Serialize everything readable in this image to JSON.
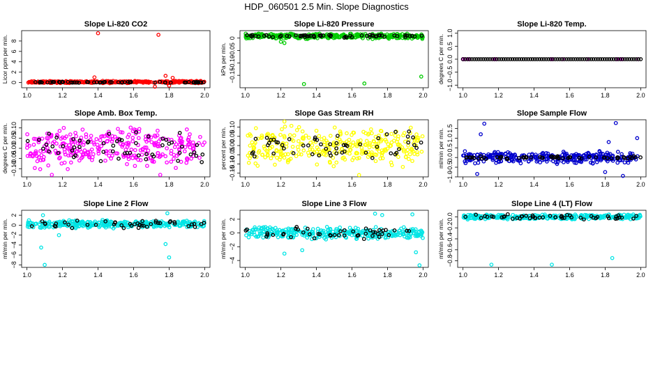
{
  "figure": {
    "title": "HDP_060501  2.5 Min. Slope Diagnostics"
  },
  "chart_data": [
    {
      "type": "scatter",
      "title": "Slope Li-820 CO2",
      "ylabel": "Licor ppm per min.",
      "xlim": [
        0.97,
        2.03
      ],
      "ylim": [
        -1.0,
        10.0
      ],
      "xticks": [
        "1.0",
        "1.2",
        "1.4",
        "1.6",
        "1.8",
        "2.0"
      ],
      "yticks": [
        {
          "v": 0,
          "label": "0"
        },
        {
          "v": 2,
          "label": "2"
        },
        {
          "v": 4,
          "label": "4"
        },
        {
          "v": 6,
          "label": "6"
        },
        {
          "v": 8,
          "label": "8"
        }
      ],
      "series": [
        {
          "name": "all",
          "color": "#ff0000",
          "center": 0.1,
          "spread": 0.25,
          "count": 320,
          "outliers": [
            [
              1.4,
              9.5
            ],
            [
              1.74,
              9.2
            ],
            [
              1.78,
              1.3
            ],
            [
              1.38,
              1.0
            ],
            [
              1.72,
              -0.8
            ],
            [
              1.8,
              -0.6
            ],
            [
              1.82,
              0.9
            ]
          ]
        },
        {
          "name": "selected",
          "color": "#000000",
          "center": 0.05,
          "spread": 0.12,
          "count": 60,
          "outliers": []
        }
      ]
    },
    {
      "type": "scatter",
      "title": "Slope Li-820 Pressure",
      "ylabel": "kPa per min.",
      "xlim": [
        0.97,
        2.03
      ],
      "ylim": [
        -0.2,
        0.03
      ],
      "xticks": [
        "1.0",
        "1.2",
        "1.4",
        "1.6",
        "1.8",
        "2.0"
      ],
      "yticks": [
        {
          "v": 0,
          "label": "0"
        },
        {
          "v": -0.05,
          "label": "−0.05"
        },
        {
          "v": -0.1,
          "label": "−0.10"
        },
        {
          "v": -0.15,
          "label": "−0.15"
        }
      ],
      "series": [
        {
          "name": "all",
          "color": "#00cc00",
          "center": 0.008,
          "spread": 0.012,
          "count": 320,
          "outliers": [
            [
              1.33,
              -0.185
            ],
            [
              1.67,
              -0.183
            ],
            [
              1.99,
              -0.155
            ],
            [
              1.22,
              -0.02
            ],
            [
              1.2,
              -0.015
            ]
          ]
        },
        {
          "name": "selected",
          "color": "#000000",
          "center": 0.008,
          "spread": 0.007,
          "count": 60,
          "outliers": []
        }
      ]
    },
    {
      "type": "scatter",
      "title": "Slope Li-820 Temp.",
      "ylabel": "degrees C per min.",
      "xlim": [
        0.97,
        2.03
      ],
      "ylim": [
        -1.1,
        1.1
      ],
      "xticks": [
        "1.0",
        "1.2",
        "1.4",
        "1.6",
        "1.8",
        "2.0"
      ],
      "yticks": [
        {
          "v": 1,
          "label": "1.0"
        },
        {
          "v": 0.5,
          "label": "0.5"
        },
        {
          "v": 0,
          "label": "0.0"
        },
        {
          "v": -0.5,
          "label": "−0.5"
        },
        {
          "v": -1,
          "label": "−1.0"
        }
      ],
      "series": [
        {
          "name": "all",
          "color": "#ff00ff",
          "center": 0.0,
          "spread": 0.0,
          "count": 10,
          "outliers": [
            [
              1.0,
              0.0
            ],
            [
              1.01,
              0.0
            ]
          ]
        },
        {
          "name": "selected",
          "color": "#000000",
          "center": 0.0,
          "spread": 0.0,
          "count": 80,
          "outliers": []
        }
      ]
    },
    {
      "type": "scatter",
      "title": "Slope Amb. Box Temp.",
      "ylabel": "degrees C per min.",
      "xlim": [
        0.97,
        2.03
      ],
      "ylim": [
        -0.14,
        0.14
      ],
      "xticks": [
        "1.0",
        "1.2",
        "1.4",
        "1.6",
        "1.8",
        "2.0"
      ],
      "yticks": [
        {
          "v": 0.1,
          "label": "0.10"
        },
        {
          "v": 0.05,
          "label": "0.05"
        },
        {
          "v": 0,
          "label": "0.00"
        },
        {
          "v": -0.05,
          "label": "−0.05"
        },
        {
          "v": -0.1,
          "label": "−0.10"
        }
      ],
      "series": [
        {
          "name": "all",
          "color": "#ff00ff",
          "center": 0.0,
          "spread": 0.11,
          "count": 320,
          "outliers": [
            [
              1.14,
              -0.13
            ],
            [
              1.75,
              -0.13
            ]
          ]
        },
        {
          "name": "selected",
          "color": "#000000",
          "center": 0.0,
          "spread": 0.09,
          "count": 55,
          "outliers": []
        }
      ]
    },
    {
      "type": "scatter",
      "title": "Slope Gas Stream RH",
      "ylabel": "percent per min.",
      "xlim": [
        0.97,
        2.03
      ],
      "ylim": [
        -0.17,
        0.14
      ],
      "xticks": [
        "1.0",
        "1.2",
        "1.4",
        "1.6",
        "1.8",
        "2.0"
      ],
      "yticks": [
        {
          "v": 0.1,
          "label": "0.10"
        },
        {
          "v": 0.05,
          "label": "0.05"
        },
        {
          "v": 0,
          "label": "0.00"
        },
        {
          "v": -0.05,
          "label": "−0.05"
        },
        {
          "v": -0.1,
          "label": "−0.10"
        },
        {
          "v": -0.15,
          "label": "−0.15"
        }
      ],
      "series": [
        {
          "name": "all",
          "color": "#ffff00",
          "center": 0.0,
          "spread": 0.12,
          "count": 320,
          "outliers": [
            [
              1.22,
              0.13
            ],
            [
              1.64,
              -0.16
            ]
          ]
        },
        {
          "name": "selected",
          "color": "#000000",
          "center": 0.0,
          "spread": 0.09,
          "count": 55,
          "outliers": []
        }
      ]
    },
    {
      "type": "scatter",
      "title": "Slope Sample Flow",
      "ylabel": "ml/min per min.",
      "xlim": [
        0.97,
        2.03
      ],
      "ylim": [
        -1.0,
        1.95
      ],
      "xticks": [
        "1.0",
        "1.2",
        "1.4",
        "1.6",
        "1.8",
        "2.0"
      ],
      "yticks": [
        {
          "v": 1.5,
          "label": "1.5"
        },
        {
          "v": 1.0,
          "label": "1.0"
        },
        {
          "v": 0.5,
          "label": "0.5"
        },
        {
          "v": 0,
          "label": "0.0"
        },
        {
          "v": -0.5,
          "label": "−0.5"
        },
        {
          "v": -1.0,
          "label": "−1.0"
        }
      ],
      "series": [
        {
          "name": "all",
          "color": "#0000cc",
          "center": 0.0,
          "spread": 0.35,
          "count": 320,
          "outliers": [
            [
              1.12,
              1.75
            ],
            [
              1.1,
              1.2
            ],
            [
              1.86,
              1.78
            ],
            [
              1.98,
              1.0
            ],
            [
              1.08,
              -0.85
            ],
            [
              1.8,
              -0.75
            ],
            [
              1.9,
              -0.95
            ],
            [
              1.82,
              0.8
            ]
          ]
        },
        {
          "name": "selected",
          "color": "#000000",
          "center": 0.0,
          "spread": 0.08,
          "count": 60,
          "outliers": []
        }
      ]
    },
    {
      "type": "scatter",
      "title": "Slope Line 2 Flow",
      "ylabel": "ml/min per min.",
      "xlim": [
        0.97,
        2.03
      ],
      "ylim": [
        -8.5,
        3.0
      ],
      "xticks": [
        "1.0",
        "1.2",
        "1.4",
        "1.6",
        "1.8",
        "2.0"
      ],
      "yticks": [
        {
          "v": 2,
          "label": "2"
        },
        {
          "v": 0,
          "label": "0"
        },
        {
          "v": -2,
          "label": "−2"
        },
        {
          "v": -4,
          "label": "−4"
        },
        {
          "v": -6,
          "label": "−6"
        },
        {
          "v": -8,
          "label": "−8"
        }
      ],
      "series": [
        {
          "name": "all",
          "color": "#00e5e5",
          "center": 0.2,
          "spread": 0.9,
          "count": 320,
          "outliers": [
            [
              1.1,
              -8.0
            ],
            [
              1.08,
              -4.5
            ],
            [
              1.8,
              -6.5
            ],
            [
              1.78,
              -3.8
            ],
            [
              1.79,
              2.4
            ],
            [
              1.09,
              2.0
            ],
            [
              1.18,
              -2.0
            ]
          ]
        },
        {
          "name": "selected",
          "color": "#000000",
          "center": 0.2,
          "spread": 0.9,
          "count": 45,
          "outliers": []
        }
      ]
    },
    {
      "type": "scatter",
      "title": "Slope Line 3 Flow",
      "ylabel": "ml/min per min.",
      "xlim": [
        0.97,
        2.03
      ],
      "ylim": [
        -5.0,
        3.3
      ],
      "xticks": [
        "1.0",
        "1.2",
        "1.4",
        "1.6",
        "1.8",
        "2.0"
      ],
      "yticks": [
        {
          "v": 2,
          "label": "2"
        },
        {
          "v": 0,
          "label": "0"
        },
        {
          "v": -2,
          "label": "−2"
        },
        {
          "v": -4,
          "label": "−4"
        }
      ],
      "series": [
        {
          "name": "all",
          "color": "#00e5e5",
          "center": 0.0,
          "spread": 1.0,
          "count": 320,
          "outliers": [
            [
              1.73,
              2.8
            ],
            [
              1.77,
              2.6
            ],
            [
              1.94,
              2.7
            ],
            [
              1.98,
              -4.7
            ],
            [
              1.22,
              -3.0
            ],
            [
              1.96,
              -2.8
            ],
            [
              1.32,
              -2.5
            ]
          ]
        },
        {
          "name": "selected",
          "color": "#000000",
          "center": 0.0,
          "spread": 1.0,
          "count": 45,
          "outliers": []
        }
      ]
    },
    {
      "type": "scatter",
      "title": "Slope Line 4 (LT) Flow",
      "ylabel": "ml/min per min.",
      "xlim": [
        0.97,
        2.03
      ],
      "ylim": [
        -0.92,
        0.12
      ],
      "xticks": [
        "1.0",
        "1.2",
        "1.4",
        "1.6",
        "1.8",
        "2.0"
      ],
      "yticks": [
        {
          "v": 0,
          "label": "0.0"
        },
        {
          "v": -0.2,
          "label": "−0.2"
        },
        {
          "v": -0.4,
          "label": "−0.4"
        },
        {
          "v": -0.6,
          "label": "−0.6"
        },
        {
          "v": -0.8,
          "label": "−0.8"
        }
      ],
      "series": [
        {
          "name": "all",
          "color": "#00e5e5",
          "center": 0.0,
          "spread": 0.05,
          "count": 320,
          "outliers": [
            [
              1.16,
              -0.87
            ],
            [
              1.5,
              -0.87
            ],
            [
              1.84,
              -0.75
            ]
          ]
        },
        {
          "name": "selected",
          "color": "#000000",
          "center": 0.0,
          "spread": 0.05,
          "count": 50,
          "outliers": []
        }
      ]
    }
  ]
}
